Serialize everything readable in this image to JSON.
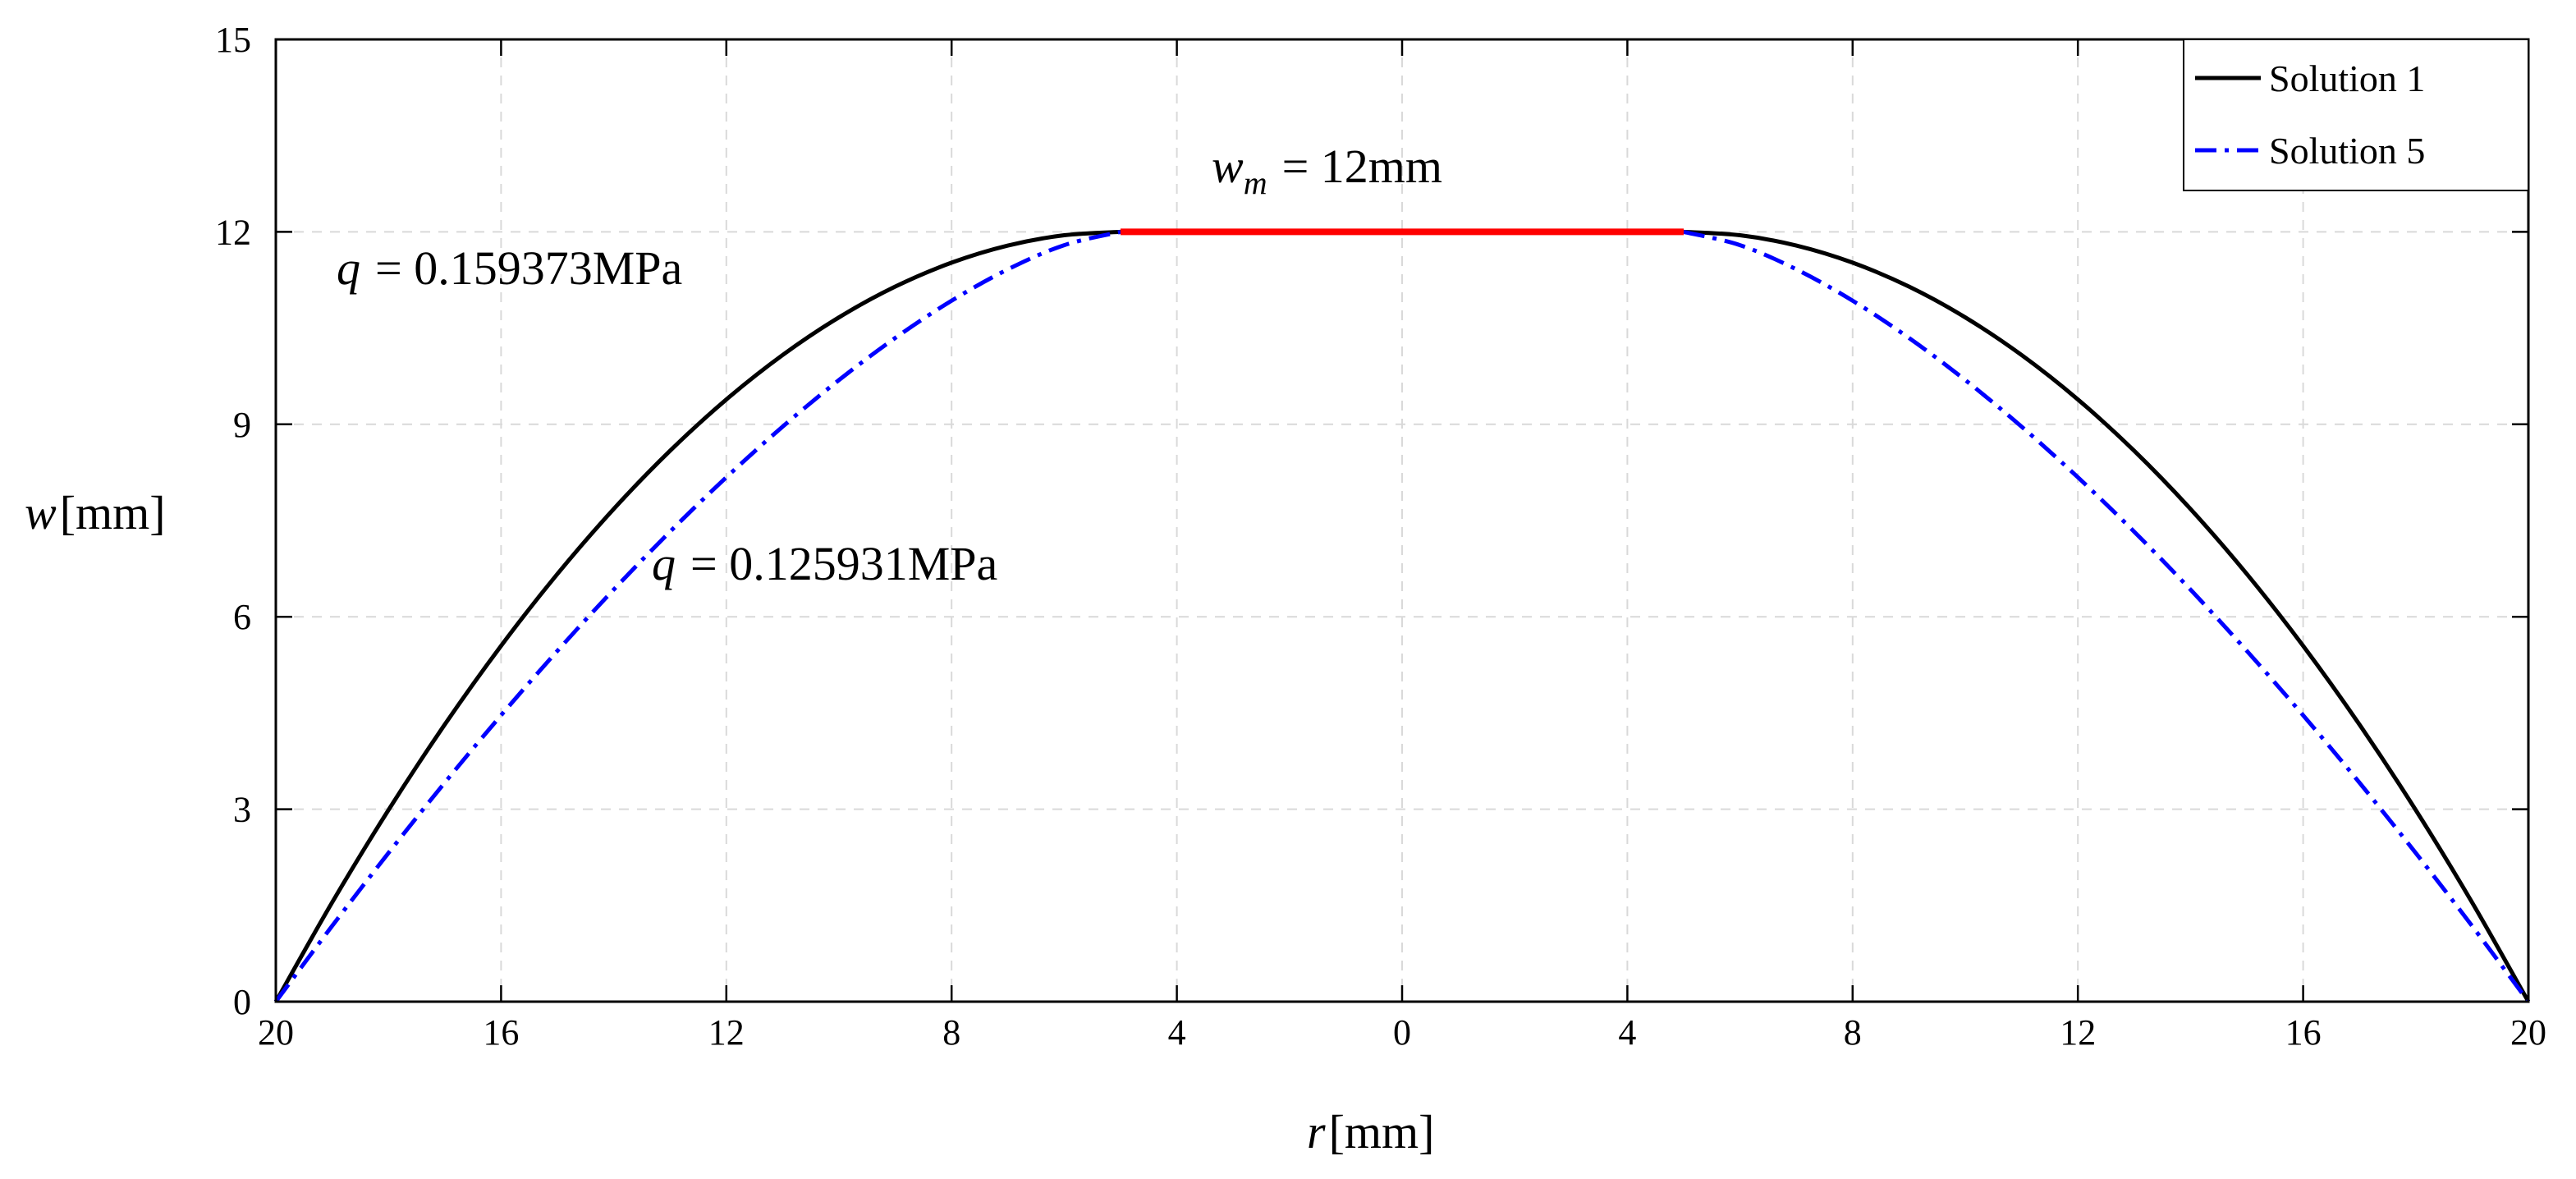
{
  "chart_data": {
    "type": "line",
    "xlim": [
      -20,
      20
    ],
    "ylim": [
      0,
      15
    ],
    "grid": true,
    "legend_position": "top-right",
    "x_ticks": [
      -20,
      -16,
      -12,
      -8,
      -4,
      0,
      4,
      8,
      12,
      16,
      20
    ],
    "x_tick_labels": [
      "20",
      "16",
      "12",
      "8",
      "4",
      "0",
      "4",
      "8",
      "12",
      "16",
      "20"
    ],
    "y_ticks": [
      0,
      3,
      6,
      9,
      12,
      15
    ],
    "y_tick_labels": [
      "0",
      "3",
      "6",
      "9",
      "12",
      "15"
    ],
    "xlabel": {
      "var": "r",
      "unit": "[mm]"
    },
    "ylabel": {
      "var": "w",
      "unit": "[mm]"
    },
    "series": [
      {
        "name": "Solution 1",
        "color": "#000000",
        "segments": [
          {
            "x": [
              -20,
              -19,
              -18,
              -17,
              -16,
              -15,
              -14,
              -13,
              -12,
              -11,
              -10,
              -9,
              -8,
              -7,
              -6,
              -5
            ],
            "y": [
              0,
              1.547,
              2.987,
              4.32,
              5.547,
              6.667,
              7.68,
              8.587,
              9.387,
              10.08,
              10.667,
              11.147,
              11.52,
              11.787,
              11.947,
              12
            ]
          },
          {
            "x": [
              5,
              6,
              7,
              8,
              9,
              10,
              11,
              12,
              13,
              14,
              15,
              16,
              17,
              18,
              19,
              20
            ],
            "y": [
              12,
              11.947,
              11.787,
              11.52,
              11.147,
              10.667,
              10.08,
              9.387,
              8.587,
              7.68,
              6.667,
              5.547,
              4.32,
              2.987,
              1.547,
              0
            ]
          }
        ]
      },
      {
        "name": "Solution 5",
        "color": "#0000ff",
        "segments": [
          {
            "x": [
              -20,
              -19,
              -18,
              -17,
              -16,
              -15,
              -14,
              -13,
              -12,
              -11,
              -10,
              -9,
              -8,
              -7,
              -6,
              -5
            ],
            "y": [
              0,
              1.18,
              2.317,
              3.414,
              4.464,
              5.468,
              6.423,
              7.326,
              8.174,
              8.964,
              9.69,
              10.347,
              10.927,
              11.416,
              11.793,
              12
            ]
          },
          {
            "x": [
              5,
              6,
              7,
              8,
              9,
              10,
              11,
              12,
              13,
              14,
              15,
              16,
              17,
              18,
              19,
              20
            ],
            "y": [
              12,
              11.793,
              11.416,
              10.927,
              10.347,
              9.69,
              8.964,
              8.174,
              7.326,
              6.423,
              5.468,
              4.464,
              3.414,
              2.317,
              1.18,
              0
            ]
          }
        ]
      }
    ],
    "contact_segment": {
      "x": [
        -5,
        5
      ],
      "y": [
        12,
        12
      ],
      "color": "#ff0000"
    },
    "annotations": [
      {
        "var": "w",
        "sub": "m",
        "rest": "= 12mm"
      },
      {
        "var": "q",
        "rest": "= 0.159373MPa"
      },
      {
        "var": "q",
        "rest": "= 0.125931MPa"
      }
    ]
  }
}
